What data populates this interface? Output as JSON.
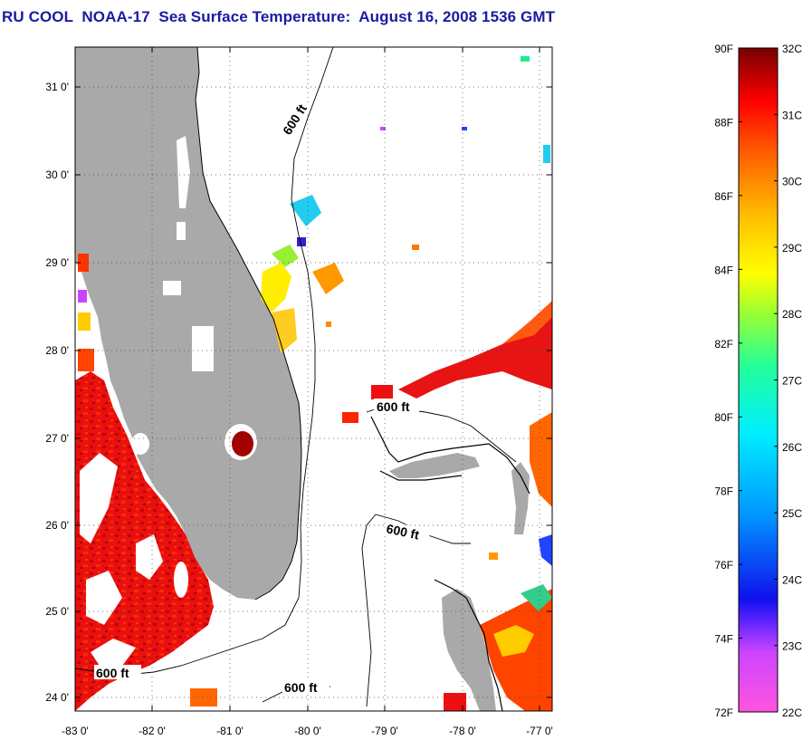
{
  "title": "RU COOL  NOAA-17  Sea Surface Temperature:  August 16, 2008 1536 GMT",
  "map": {
    "lat_labels": [
      "31 0'",
      "30 0'",
      "29 0'",
      "28 0'",
      "27 0'",
      "26 0'",
      "25 0'",
      "24 0'"
    ],
    "lon_labels": [
      "-83 0'",
      "-82 0'",
      "-81 0'",
      "-80 0'",
      "-79 0'",
      "-78 0'",
      "-77 0'"
    ],
    "contour_labels": [
      "600 ft",
      "600 ft",
      "600 ft",
      "600 ft",
      "600 ft"
    ],
    "land_color": "#a9a9a9"
  },
  "colorbar": {
    "f_labels": [
      "90F",
      "88F",
      "86F",
      "84F",
      "82F",
      "80F",
      "78F",
      "76F",
      "74F",
      "72F"
    ],
    "c_labels": [
      "32C",
      "31C",
      "30C",
      "29C",
      "28C",
      "27C",
      "26C",
      "25C",
      "24C",
      "23C",
      "22C"
    ],
    "f_range": [
      72,
      90
    ],
    "c_range": [
      22,
      32
    ]
  }
}
